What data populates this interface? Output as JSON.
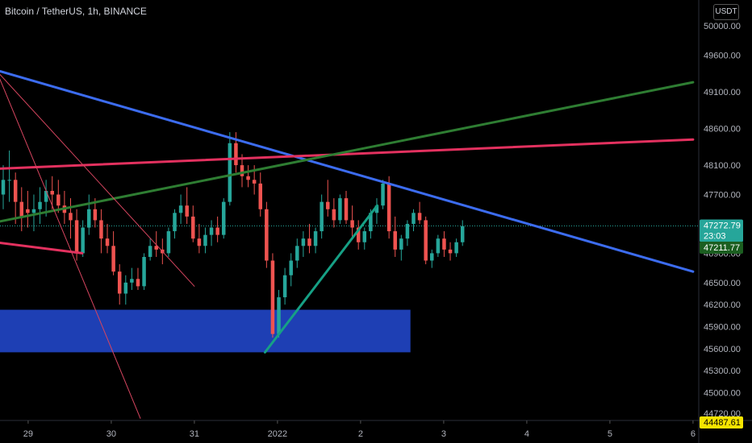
{
  "header": {
    "title": "Bitcoin / TetherUS, 1h, BINANCE",
    "currency": "USDT"
  },
  "colors": {
    "up": "#26a69a",
    "down": "#ef5350",
    "blue_trend": "#3c6cf0",
    "red_trend": "#e3315f",
    "green_trend": "#2e7d32",
    "zone": "#1e3fb4",
    "teal_line": "#16a085",
    "thin_red": "#d6455f"
  },
  "chart_data": {
    "type": "candlestick",
    "ylim": [
      44400,
      50200
    ],
    "y_ticks": [
      50000,
      49600,
      49100,
      48600,
      48100,
      47700,
      47200,
      46900,
      46500,
      46200,
      45900,
      45600,
      45300,
      45000,
      44720
    ],
    "y_tick_labels": [
      "50000.00",
      "49600.00",
      "49100.00",
      "48600.00",
      "48100.00",
      "47700.00",
      "47200.00",
      "46900.00",
      "46500.00",
      "46200.00",
      "45900.00",
      "45600.00",
      "45300.00",
      "45000.00",
      "44720.00"
    ],
    "x_ticks": [
      {
        "label": "29",
        "t": 0.3
      },
      {
        "label": "30",
        "t": 1.3
      },
      {
        "label": "31",
        "t": 2.3
      },
      {
        "label": "2022",
        "t": 3.3
      },
      {
        "label": "2",
        "t": 4.3
      },
      {
        "label": "3",
        "t": 5.3
      },
      {
        "label": "4",
        "t": 6.3
      },
      {
        "label": "5",
        "t": 7.3
      },
      {
        "label": "6",
        "t": 8.3
      }
    ],
    "price_labels": [
      {
        "value": 47272.79,
        "text": "47272.79",
        "sub": "23:03",
        "color": "#26a69a"
      },
      {
        "value": 47211.77,
        "text": "47211.77",
        "color": "#1b5e20"
      },
      {
        "value": 44487.61,
        "text": "44487.61",
        "color": "#f5e400",
        "text_color": "#000"
      }
    ],
    "candles": [
      [
        47700,
        48100,
        47500,
        47900
      ],
      [
        47900,
        48300,
        47600,
        47900
      ],
      [
        47900,
        48000,
        47300,
        47600
      ],
      [
        47600,
        47800,
        47200,
        47400
      ],
      [
        47500,
        47750,
        47250,
        47450
      ],
      [
        47450,
        47700,
        47200,
        47500
      ],
      [
        47500,
        47800,
        47300,
        47600
      ],
      [
        47600,
        47900,
        47400,
        47750
      ],
      [
        47750,
        47950,
        47500,
        47700
      ],
      [
        47700,
        47900,
        47450,
        47550
      ],
      [
        47550,
        47750,
        47300,
        47450
      ],
      [
        47450,
        47650,
        47100,
        47350
      ],
      [
        47350,
        47500,
        46800,
        46900
      ],
      [
        46900,
        47350,
        46850,
        47250
      ],
      [
        47250,
        47700,
        47150,
        47500
      ],
      [
        47500,
        47650,
        47250,
        47350
      ],
      [
        47350,
        47500,
        46900,
        47100
      ],
      [
        47100,
        47300,
        46900,
        47000
      ],
      [
        47000,
        47200,
        46600,
        46650
      ],
      [
        46650,
        46750,
        46200,
        46350
      ],
      [
        46350,
        46600,
        46200,
        46500
      ],
      [
        46500,
        46700,
        46400,
        46550
      ],
      [
        46550,
        46700,
        46400,
        46450
      ],
      [
        46450,
        46900,
        46400,
        46850
      ],
      [
        46850,
        47100,
        46800,
        47000
      ],
      [
        47000,
        47200,
        46850,
        46950
      ],
      [
        46950,
        47100,
        46750,
        46900
      ],
      [
        46900,
        47250,
        46850,
        47200
      ],
      [
        47200,
        47500,
        47100,
        47450
      ],
      [
        47450,
        47700,
        47300,
        47550
      ],
      [
        47550,
        47800,
        47300,
        47400
      ],
      [
        47400,
        47550,
        47050,
        47100
      ],
      [
        47100,
        47300,
        46900,
        47000
      ],
      [
        47000,
        47250,
        46900,
        47150
      ],
      [
        47150,
        47350,
        47000,
        47250
      ],
      [
        47250,
        47400,
        47050,
        47150
      ],
      [
        47150,
        47650,
        47100,
        47600
      ],
      [
        47600,
        48550,
        47550,
        48400
      ],
      [
        48400,
        48550,
        48000,
        48100
      ],
      [
        48100,
        48250,
        47800,
        47950
      ],
      [
        47950,
        48100,
        47800,
        47900
      ],
      [
        47900,
        48100,
        47700,
        47850
      ],
      [
        47850,
        48000,
        47400,
        47500
      ],
      [
        47500,
        47600,
        46700,
        46800
      ],
      [
        46800,
        46900,
        45750,
        45800
      ],
      [
        45800,
        46400,
        45750,
        46300
      ],
      [
        46300,
        46700,
        46200,
        46600
      ],
      [
        46600,
        46900,
        46450,
        46800
      ],
      [
        46800,
        47100,
        46700,
        47000
      ],
      [
        47000,
        47200,
        46850,
        47100
      ],
      [
        47100,
        47300,
        46900,
        47000
      ],
      [
        47000,
        47250,
        46900,
        47200
      ],
      [
        47200,
        47700,
        47100,
        47600
      ],
      [
        47600,
        47900,
        47400,
        47500
      ],
      [
        47500,
        47650,
        47250,
        47350
      ],
      [
        47350,
        47700,
        47300,
        47650
      ],
      [
        47650,
        47750,
        47300,
        47350
      ],
      [
        47350,
        47550,
        47100,
        47250
      ],
      [
        47250,
        47350,
        46950,
        47050
      ],
      [
        47050,
        47250,
        46950,
        47200
      ],
      [
        47200,
        47500,
        47100,
        47450
      ],
      [
        47450,
        47650,
        47300,
        47550
      ],
      [
        47550,
        47900,
        47500,
        47850
      ],
      [
        47850,
        47950,
        47100,
        47200
      ],
      [
        47200,
        47400,
        46850,
        46950
      ],
      [
        46950,
        47150,
        46800,
        47100
      ],
      [
        47100,
        47350,
        47000,
        47300
      ],
      [
        47300,
        47500,
        47200,
        47450
      ],
      [
        47450,
        47600,
        47300,
        47350
      ],
      [
        47350,
        47400,
        46750,
        46800
      ],
      [
        46800,
        46950,
        46700,
        46900
      ],
      [
        46900,
        47150,
        46850,
        47100
      ],
      [
        47100,
        47200,
        46850,
        46950
      ],
      [
        46950,
        47050,
        46800,
        46900
      ],
      [
        46900,
        47100,
        46850,
        47050
      ],
      [
        47050,
        47350,
        47000,
        47270
      ]
    ],
    "zone": {
      "t_start": -0.1,
      "t_end": 4.9,
      "y_top": 46130,
      "y_bottom": 45550
    },
    "lines": [
      {
        "name": "blue_trend",
        "color": "#3c6cf0",
        "width": 3,
        "t1": -0.1,
        "y1": 49400,
        "t2": 8.3,
        "y2": 46650
      },
      {
        "name": "red_trend",
        "color": "#e3315f",
        "width": 3,
        "t1": -0.1,
        "y1": 48050,
        "t2": 8.3,
        "y2": 48450
      },
      {
        "name": "green_trend",
        "color": "#2e7d32",
        "width": 3,
        "t1": -0.1,
        "y1": 47320,
        "t2": 8.3,
        "y2": 49230
      },
      {
        "name": "teal_trend",
        "color": "#16a085",
        "width": 3,
        "t1": 3.15,
        "y1": 45550,
        "t2": 4.5,
        "y2": 47550
      },
      {
        "name": "red_support",
        "color": "#e3315f",
        "width": 3,
        "t1": -0.1,
        "y1": 47050,
        "t2": 0.95,
        "y2": 46900
      },
      {
        "name": "thin_red_1",
        "color": "#d6455f",
        "width": 1,
        "t1": -0.05,
        "y1": 49350,
        "t2": 2.3,
        "y2": 46450
      },
      {
        "name": "thin_red_2",
        "color": "#d6455f",
        "width": 1,
        "t1": -0.05,
        "y1": 49300,
        "t2": 1.65,
        "y2": 44650
      }
    ]
  }
}
